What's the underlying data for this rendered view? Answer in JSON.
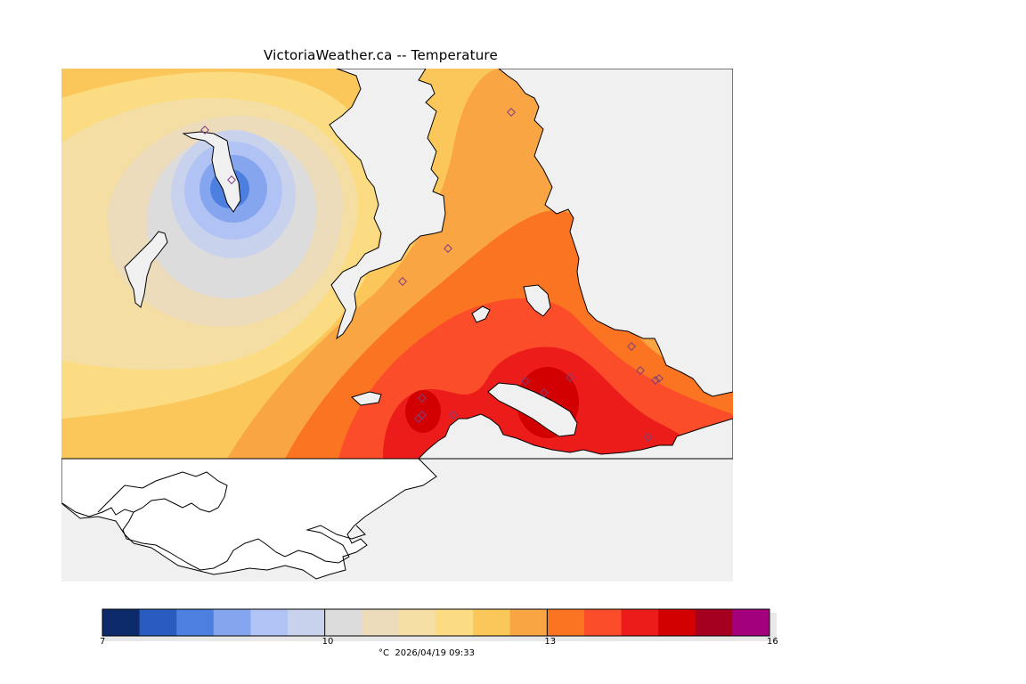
{
  "title": "VictoriaWeather.ca -- Temperature",
  "colorbar": {
    "colors": [
      "#0d2b6b",
      "#2a5bbf",
      "#4d7fe0",
      "#85a6ee",
      "#b0c3f4",
      "#c9d2ec",
      "#dcdcdc",
      "#ecdcbc",
      "#f4dea3",
      "#fbdc82",
      "#fbc75a",
      "#f9a544",
      "#fb7421",
      "#fb4d2a",
      "#ec1c1b",
      "#d20000",
      "#a5001f",
      "#a3007d"
    ],
    "ticks": [
      {
        "value": 7,
        "label": "7"
      },
      {
        "value": 10,
        "label": "10"
      },
      {
        "value": 13,
        "label": "13"
      },
      {
        "value": 16,
        "label": "16"
      }
    ],
    "min": 7,
    "max": 16,
    "caption": "°C  2026/04/19 09:33"
  },
  "colors": {
    "land_base": "#fbc75a",
    "water": "#f0f0f0",
    "no_data": "#ffffff",
    "coast": "#000000",
    "station": "#7f3f7f"
  }
}
